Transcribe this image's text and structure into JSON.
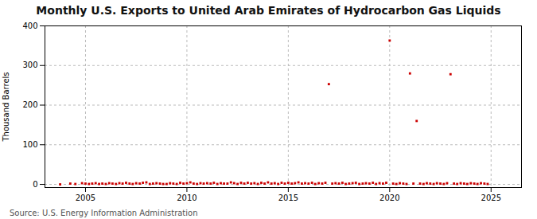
{
  "chart_data": {
    "type": "scatter",
    "title": "Monthly U.S. Exports to United Arab Emirates of Hydrocarbon Gas Liquids",
    "y_label": "Thousand Barrels",
    "source": "Source: U.S. Energy Information Administration",
    "color": "#cc0000",
    "marker": "square",
    "grid": true,
    "xlim": [
      2003.0,
      2026.5
    ],
    "ylim": [
      -8,
      400
    ],
    "xticks": [
      2005,
      2010,
      2015,
      2020,
      2025
    ],
    "yticks": [
      0,
      100,
      200,
      300,
      400
    ],
    "x": [
      2003.75,
      2004.25,
      2004.5,
      2004.83,
      2005.0,
      2005.17,
      2005.33,
      2005.5,
      2005.67,
      2005.83,
      2006.0,
      2006.17,
      2006.33,
      2006.5,
      2006.67,
      2006.83,
      2007.0,
      2007.17,
      2007.33,
      2007.5,
      2007.67,
      2007.83,
      2008.0,
      2008.17,
      2008.33,
      2008.5,
      2008.67,
      2008.83,
      2009.0,
      2009.17,
      2009.33,
      2009.5,
      2009.67,
      2009.83,
      2010.0,
      2010.17,
      2010.33,
      2010.5,
      2010.67,
      2010.83,
      2011.0,
      2011.17,
      2011.33,
      2011.5,
      2011.67,
      2011.83,
      2012.0,
      2012.17,
      2012.33,
      2012.5,
      2012.67,
      2012.83,
      2013.0,
      2013.17,
      2013.33,
      2013.5,
      2013.67,
      2013.83,
      2014.0,
      2014.17,
      2014.33,
      2014.5,
      2014.67,
      2014.83,
      2015.0,
      2015.17,
      2015.33,
      2015.5,
      2015.67,
      2015.83,
      2016.0,
      2016.17,
      2016.33,
      2016.5,
      2016.67,
      2016.83,
      2017.0,
      2017.17,
      2017.33,
      2017.5,
      2017.67,
      2017.83,
      2018.0,
      2018.17,
      2018.33,
      2018.5,
      2018.67,
      2018.83,
      2019.0,
      2019.17,
      2019.33,
      2019.5,
      2019.67,
      2019.83,
      2020.0,
      2020.17,
      2020.33,
      2020.5,
      2020.67,
      2020.83,
      2021.0,
      2021.17,
      2021.33,
      2021.5,
      2021.67,
      2021.83,
      2022.0,
      2022.17,
      2022.33,
      2022.5,
      2022.67,
      2022.83,
      2023.0,
      2023.17,
      2023.33,
      2023.5,
      2023.67,
      2023.83,
      2024.0,
      2024.17,
      2024.33,
      2024.5,
      2024.67,
      2024.83
    ],
    "values": [
      0,
      2,
      1,
      3,
      2,
      1,
      2,
      3,
      1,
      2,
      1,
      3,
      2,
      1,
      3,
      2,
      4,
      2,
      1,
      3,
      2,
      4,
      5,
      1,
      2,
      3,
      2,
      1,
      1,
      3,
      2,
      1,
      4,
      2,
      3,
      5,
      2,
      1,
      3,
      2,
      3,
      2,
      4,
      1,
      3,
      2,
      2,
      5,
      3,
      1,
      4,
      2,
      4,
      2,
      3,
      1,
      4,
      2,
      5,
      2,
      3,
      1,
      4,
      2,
      4,
      2,
      3,
      5,
      2,
      3,
      2,
      4,
      1,
      3,
      2,
      4,
      253,
      2,
      3,
      2,
      4,
      1,
      2,
      3,
      4,
      1,
      2,
      3,
      2,
      4,
      1,
      3,
      2,
      4,
      363,
      2,
      1,
      3,
      2,
      1,
      280,
      2,
      160,
      2,
      1,
      3,
      2,
      1,
      3,
      2,
      1,
      3,
      278,
      2,
      1,
      3,
      2,
      1,
      3,
      2,
      1,
      3,
      2,
      1
    ]
  }
}
